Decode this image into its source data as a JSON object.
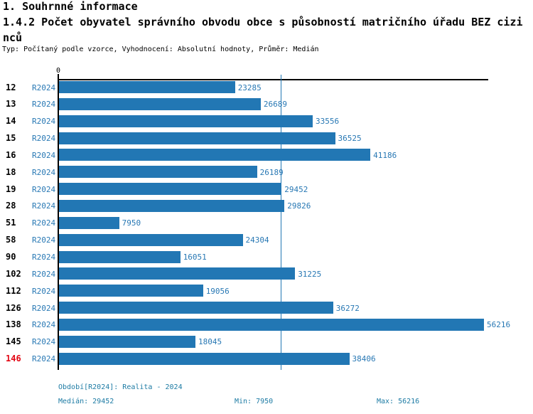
{
  "header": {
    "title": "1. Souhrnné informace",
    "subtitle": "1.4.2 Počet obyvatel správního obvodu obce s působností matričního úřadu BEZ cizinců",
    "meta": "Typ: Počítaný podle vzorce, Vyhodnocení: Absolutní hodnoty, Průměr: Medián"
  },
  "chart_data": {
    "type": "bar",
    "orientation": "horizontal",
    "title": "1.4.2 Počet obyvatel správního obvodu obce s působností matričního úřadu BEZ cizinců",
    "categories": [
      "12",
      "13",
      "14",
      "15",
      "16",
      "18",
      "19",
      "28",
      "51",
      "58",
      "90",
      "102",
      "112",
      "126",
      "138",
      "145",
      "146"
    ],
    "series": [
      {
        "name": "R2024",
        "values": [
          23285,
          26689,
          33556,
          36525,
          41186,
          26189,
          29452,
          29826,
          7950,
          24304,
          16051,
          31225,
          19056,
          36272,
          56216,
          18045,
          38406
        ]
      }
    ],
    "axis_origin_label": "0",
    "xlim": [
      0,
      56900
    ],
    "grid": false,
    "legend_position": "none",
    "median_line_value": 29452,
    "highlighted_category": "146",
    "stats": {
      "median": 29452,
      "min": 7950,
      "max": 56216
    }
  },
  "footer": {
    "period": "Období[R2024]: Realita - 2024",
    "median": "Medián: 29452",
    "min": "Min: 7950",
    "max": "Max: 56216"
  },
  "colors": {
    "bar": "#2277B4",
    "median_line": "#2277B4",
    "series_label": "#2878B4",
    "value_label": "#2878B4",
    "category_label": "#000000",
    "highlight_label": "#E30613",
    "footer_text": "#1D7BA4",
    "axis": "#000000"
  }
}
